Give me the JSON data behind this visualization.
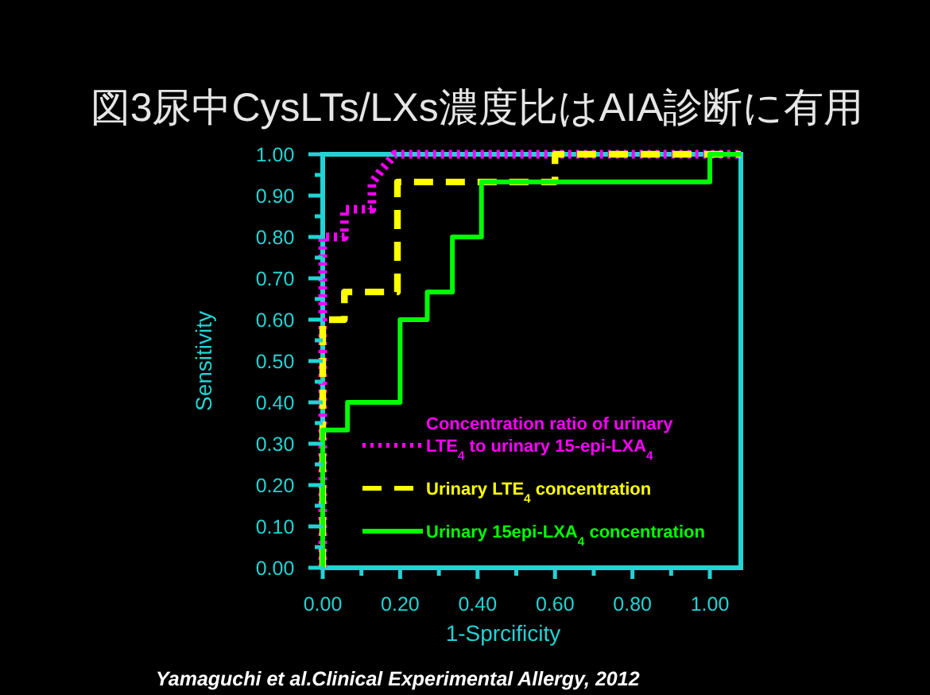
{
  "chart_data": {
    "type": "line",
    "title": "図3尿中CysLTs/LXs濃度比はAIA診断に有用",
    "xlabel": "1-Sprcificity",
    "ylabel": "Sensitivity",
    "xlim": [
      0,
      1.08
    ],
    "ylim": [
      0,
      1
    ],
    "xticks": [
      {
        "value": 0,
        "label": "0.00"
      },
      {
        "value": 0.1,
        "label": null
      },
      {
        "value": 0.2,
        "label": "0.20"
      },
      {
        "value": 0.3,
        "label": null
      },
      {
        "value": 0.4,
        "label": "0.40"
      },
      {
        "value": 0.5,
        "label": null
      },
      {
        "value": 0.6,
        "label": "0.60"
      },
      {
        "value": 0.7,
        "label": null
      },
      {
        "value": 0.8,
        "label": "0.80"
      },
      {
        "value": 0.9,
        "label": null
      },
      {
        "value": 1,
        "label": "1.00"
      }
    ],
    "yticks": [
      {
        "value": 0,
        "label": "0.00"
      },
      {
        "value": 0.05,
        "label": null
      },
      {
        "value": 0.1,
        "label": "0.10"
      },
      {
        "value": 0.15,
        "label": null
      },
      {
        "value": 0.2,
        "label": "0.20"
      },
      {
        "value": 0.25,
        "label": null
      },
      {
        "value": 0.3,
        "label": "0.30"
      },
      {
        "value": 0.35,
        "label": null
      },
      {
        "value": 0.4,
        "label": "0.40"
      },
      {
        "value": 0.45,
        "label": null
      },
      {
        "value": 0.5,
        "label": "0.50"
      },
      {
        "value": 0.55,
        "label": null
      },
      {
        "value": 0.6,
        "label": "0.60"
      },
      {
        "value": 0.65,
        "label": null
      },
      {
        "value": 0.7,
        "label": "0.70"
      },
      {
        "value": 0.75,
        "label": null
      },
      {
        "value": 0.8,
        "label": "0.80"
      },
      {
        "value": 0.85,
        "label": null
      },
      {
        "value": 0.9,
        "label": "0.90"
      },
      {
        "value": 0.95,
        "label": null
      },
      {
        "value": 1,
        "label": "1.00"
      }
    ],
    "grid": false,
    "legend": "bottom right",
    "marker": "none",
    "series": [
      {
        "name": "Concentration ratio of urinary LTE$_{4}$ to urinary 15-epi-LXA$_{4}$",
        "color": "#ff00ff",
        "line_style": "dotted",
        "x": [
          0,
          0,
          0.056,
          0.056,
          0.127,
          0.127,
          0.15,
          0.186,
          1.08
        ],
        "values": [
          0,
          0.8,
          0.8,
          0.867,
          0.867,
          0.93,
          0.96,
          1,
          1
        ]
      },
      {
        "name": "Urinary LTE$_{4}$ concentration",
        "color": "#ffff00",
        "line_style": "dashed",
        "x": [
          0,
          0,
          0.056,
          0.056,
          0.193,
          0.193,
          0.6,
          0.6,
          1.08
        ],
        "values": [
          0,
          0.6,
          0.6,
          0.667,
          0.667,
          0.933,
          0.933,
          1,
          1
        ]
      },
      {
        "name": "Urinary 15epi-LXA$_{4}$ concentration",
        "color": "#00ff00",
        "line_style": "solid",
        "x": [
          0,
          0,
          0.064,
          0.064,
          0.2,
          0.2,
          0.27,
          0.27,
          0.335,
          0.335,
          0.41,
          0.41,
          1,
          1,
          1.08
        ],
        "values": [
          0,
          0.333,
          0.333,
          0.4,
          0.4,
          0.6,
          0.6,
          0.667,
          0.667,
          0.8,
          0.8,
          0.933,
          0.933,
          1,
          1
        ]
      }
    ],
    "annotations": [
      "Yamaguchi et al.Clinical Experimental Allergy, 2012"
    ]
  }
}
